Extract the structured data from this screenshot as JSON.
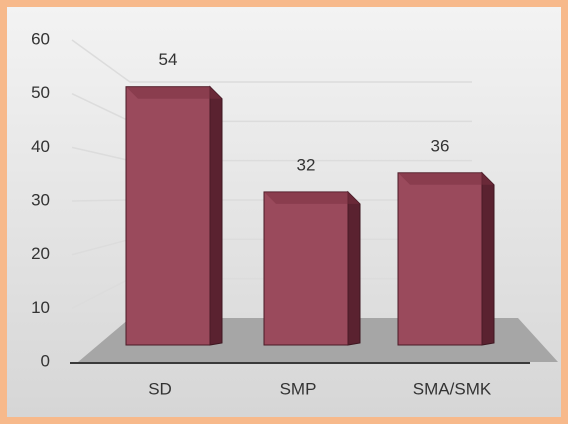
{
  "chart_data": {
    "type": "bar3d",
    "categories": [
      "SD",
      "SMP",
      "SMA/SMK"
    ],
    "values": [
      54,
      32,
      36
    ],
    "color": "#9a4a5c",
    "ylim": [
      0,
      60
    ],
    "yticks": [
      0,
      10,
      20,
      30,
      40,
      50,
      60
    ],
    "grid": true
  }
}
